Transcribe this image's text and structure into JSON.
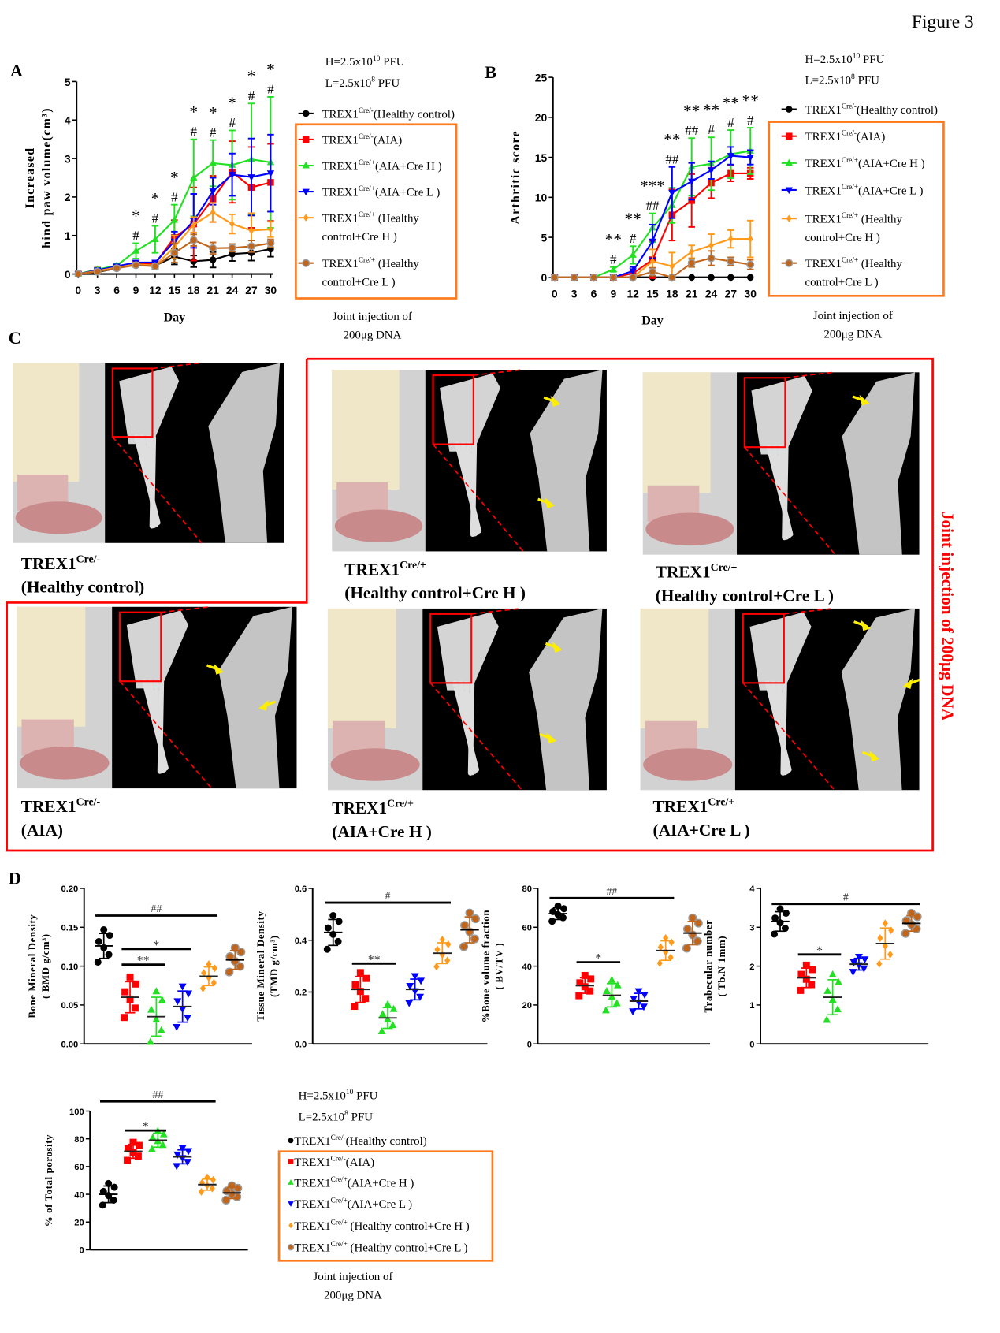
{
  "figure_title": "Figure 3",
  "panel_labels": {
    "A": "A",
    "B": "B",
    "C": "C",
    "D": "D"
  },
  "dose": {
    "H": {
      "base": "H=2.5x10",
      "exp": "10",
      "unit": " PFU"
    },
    "L": {
      "base": "L=2.5x10",
      "exp": "8",
      "unit": " PFU"
    }
  },
  "joint_injection_note": [
    "Joint injection of",
    "200μg  DNA"
  ],
  "joint_injection_vertical": "Joint injection of 200μg  DNA",
  "colors": {
    "accent_box": "#ff7a1a",
    "panel_border": "#ff0000",
    "arrow": "#ffee00"
  },
  "groups": [
    {
      "gene": "TREX1",
      "sup": "Cre/-",
      "legend_lines": [
        "(Healthy control)"
      ],
      "legend_text": "(Healthy control)",
      "color": "#000000",
      "marker": "circle"
    },
    {
      "gene": "TREX1",
      "sup": "Cre/-",
      "legend_lines": [
        "(AIA)"
      ],
      "legend_text": "(AIA)",
      "color": "#ff0000",
      "marker": "square"
    },
    {
      "gene": "TREX1",
      "sup": "Cre/+",
      "legend_lines": [
        "(AIA+Cre H )"
      ],
      "legend_text": "(AIA+Cre H )",
      "color": "#22e022",
      "marker": "triangle-up"
    },
    {
      "gene": "TREX1",
      "sup": "Cre/+",
      "legend_lines": [
        "(AIA+Cre L )"
      ],
      "legend_text": "(AIA+Cre L )",
      "color": "#0000ff",
      "marker": "triangle-down"
    },
    {
      "gene": "TREX1",
      "sup": "Cre/+",
      "legend_lines": [
        " (Healthy",
        "control+Cre H )"
      ],
      "legend_text": " (Healthy control+Cre H )",
      "color": "#ff9a1a",
      "marker": "diamond"
    },
    {
      "gene": "TREX1",
      "sup": "Cre/+",
      "legend_lines": [
        " (Healthy",
        "control+Cre L )"
      ],
      "legend_text": " (Healthy control+Cre L )",
      "color": "#c0651a",
      "marker": "circle-ring"
    }
  ],
  "panel_c": {
    "images": [
      {
        "gene": "TREX1",
        "sup": "Cre/-",
        "condition": "(Healthy control)"
      },
      {
        "gene": "TREX1",
        "sup": "Cre/+",
        "condition": "(Healthy control+Cre H )"
      },
      {
        "gene": "TREX1",
        "sup": "Cre/+",
        "condition": "(Healthy control+Cre L )"
      },
      {
        "gene": "TREX1",
        "sup": "Cre/-",
        "condition": "(AIA)"
      },
      {
        "gene": "TREX1",
        "sup": "Cre/+",
        "condition": "(AIA+Cre H )"
      },
      {
        "gene": "TREX1",
        "sup": "Cre/+",
        "condition": "(AIA+Cre L )"
      }
    ]
  },
  "chart_data": [
    {
      "id": "A",
      "type": "line",
      "ylabel": [
        "Increased",
        "hind paw volume(cm³)"
      ],
      "xlabel": "Day",
      "x": [
        0,
        3,
        6,
        9,
        12,
        15,
        18,
        21,
        24,
        27,
        30
      ],
      "ylim": [
        0,
        5
      ],
      "yticks": [
        0,
        1,
        2,
        3,
        4,
        5
      ],
      "series": [
        {
          "group": 0,
          "values": [
            0,
            0.05,
            0.15,
            0.25,
            0.22,
            0.45,
            0.33,
            0.37,
            0.52,
            0.55,
            0.65
          ],
          "error": [
            0.03,
            0.03,
            0.04,
            0.05,
            0.08,
            0.2,
            0.15,
            0.2,
            0.18,
            0.2,
            0.2
          ]
        },
        {
          "group": 1,
          "values": [
            0,
            0.1,
            0.18,
            0.28,
            0.27,
            0.95,
            1.3,
            1.95,
            2.65,
            2.25,
            2.38
          ],
          "error": [
            0.03,
            0.04,
            0.04,
            0.05,
            0.05,
            0.45,
            0.95,
            0.6,
            0.8,
            1.05,
            1.0
          ]
        },
        {
          "group": 2,
          "values": [
            0,
            0.12,
            0.22,
            0.6,
            0.9,
            1.4,
            2.5,
            2.88,
            2.83,
            2.98,
            2.9
          ],
          "error": [
            0.03,
            0.04,
            0.05,
            0.2,
            0.35,
            0.4,
            1.0,
            0.6,
            0.9,
            1.45,
            1.7
          ]
        },
        {
          "group": 3,
          "values": [
            0,
            0.1,
            0.2,
            0.3,
            0.3,
            0.85,
            1.38,
            2.15,
            2.58,
            2.52,
            2.62
          ],
          "error": [
            0.03,
            0.04,
            0.04,
            0.05,
            0.05,
            0.25,
            0.7,
            0.35,
            0.55,
            1.0,
            1.0
          ]
        },
        {
          "group": 4,
          "values": [
            0,
            0.08,
            0.17,
            0.25,
            0.22,
            0.7,
            1.28,
            1.6,
            1.3,
            1.13,
            1.16
          ],
          "error": [
            0.03,
            0.03,
            0.04,
            0.05,
            0.05,
            0.3,
            0.2,
            0.25,
            0.25,
            0.45,
            0.2
          ]
        },
        {
          "group": 5,
          "values": [
            0,
            0.06,
            0.15,
            0.23,
            0.2,
            0.55,
            0.88,
            0.67,
            0.68,
            0.72,
            0.8
          ],
          "error": [
            0.03,
            0.03,
            0.04,
            0.05,
            0.05,
            0.25,
            0.15,
            0.15,
            0.1,
            0.15,
            0.1
          ]
        }
      ],
      "annotations": [
        {
          "x": 9,
          "lines": [
            "*",
            "#"
          ]
        },
        {
          "x": 12,
          "lines": [
            "*",
            "#"
          ]
        },
        {
          "x": 15,
          "lines": [
            "*",
            "#"
          ]
        },
        {
          "x": 18,
          "lines": [
            "*",
            "#"
          ]
        },
        {
          "x": 21,
          "lines": [
            "*",
            "#"
          ]
        },
        {
          "x": 24,
          "lines": [
            "*",
            "#"
          ]
        },
        {
          "x": 27,
          "lines": [
            "*",
            "#"
          ]
        },
        {
          "x": 30,
          "lines": [
            "*",
            "#"
          ]
        }
      ]
    },
    {
      "id": "B",
      "type": "line",
      "ylabel": [
        "Arthritic score"
      ],
      "xlabel": "Day",
      "x": [
        0,
        3,
        6,
        9,
        12,
        15,
        18,
        21,
        24,
        27,
        30
      ],
      "ylim": [
        0,
        25
      ],
      "yticks": [
        0,
        5,
        10,
        15,
        20,
        25
      ],
      "series": [
        {
          "group": 0,
          "values": [
            0,
            0,
            0,
            0,
            0,
            0,
            0,
            0,
            0,
            0,
            0
          ],
          "error": [
            0,
            0,
            0,
            0,
            0,
            0,
            0,
            0,
            0,
            0,
            0
          ]
        },
        {
          "group": 1,
          "values": [
            0,
            0,
            0,
            0,
            0.5,
            2.2,
            7.8,
            9.6,
            11.8,
            13,
            13
          ],
          "error": [
            0,
            0,
            0,
            0,
            0.4,
            2.3,
            3.2,
            3.3,
            1.9,
            1,
            0.7
          ]
        },
        {
          "group": 2,
          "values": [
            0,
            0,
            0,
            1,
            2.8,
            6.2,
            9,
            13.8,
            14.2,
            15.4,
            15.8
          ],
          "error": [
            0,
            0,
            0,
            0.3,
            1.1,
            1.8,
            2.2,
            3.6,
            3.3,
            3,
            2.9
          ]
        },
        {
          "group": 3,
          "values": [
            0,
            0,
            0,
            0,
            0.8,
            4.5,
            10.6,
            12,
            13.4,
            15.2,
            15
          ],
          "error": [
            0,
            0,
            0,
            0,
            0.5,
            2.1,
            3.2,
            2.3,
            1.1,
            1.1,
            0.9
          ]
        },
        {
          "group": 4,
          "values": [
            0,
            0,
            0,
            0,
            0,
            2,
            1.4,
            3.2,
            4,
            4.8,
            4.8
          ],
          "error": [
            0,
            0,
            0,
            0,
            0,
            1.5,
            1.7,
            0.8,
            1.4,
            1.1,
            2.3
          ]
        },
        {
          "group": 5,
          "values": [
            0,
            0,
            0,
            0,
            0,
            0.7,
            0,
            1.8,
            2.4,
            2,
            1.6
          ],
          "error": [
            0,
            0,
            0,
            0,
            0,
            0.5,
            0,
            0.5,
            0.9,
            0.5,
            0.6
          ]
        }
      ],
      "annotations": [
        {
          "x": 9,
          "lines": [
            "**",
            "#"
          ]
        },
        {
          "x": 12,
          "lines": [
            "**",
            "#"
          ]
        },
        {
          "x": 15,
          "lines": [
            "***",
            "##"
          ]
        },
        {
          "x": 18,
          "lines": [
            "**",
            "##"
          ]
        },
        {
          "x": 21,
          "lines": [
            "**",
            "##"
          ]
        },
        {
          "x": 24,
          "lines": [
            "**",
            "#"
          ]
        },
        {
          "x": 27,
          "lines": [
            "**",
            "#"
          ]
        },
        {
          "x": 30,
          "lines": [
            "**",
            "#"
          ]
        }
      ]
    },
    {
      "id": "D1",
      "type": "scatter",
      "ylabel": [
        "Bone Mineral Density",
        "( BMD g/cm³)"
      ],
      "ylim": [
        0,
        0.2
      ],
      "yticks": [
        0,
        0.05,
        0.1,
        0.15,
        0.2
      ],
      "ytick_labels": [
        "0.00",
        "0.05",
        "0.10",
        "0.15",
        "0.20"
      ],
      "groups": [
        {
          "mean": 0.126,
          "sd": 0.016
        },
        {
          "mean": 0.06,
          "sd": 0.02
        },
        {
          "mean": 0.035,
          "sd": 0.025
        },
        {
          "mean": 0.048,
          "sd": 0.02
        },
        {
          "mean": 0.087,
          "sd": 0.012
        },
        {
          "mean": 0.108,
          "sd": 0.012
        }
      ],
      "significance": [
        {
          "from": 0,
          "to": 4,
          "label": "##",
          "y": 0.165
        },
        {
          "from": 1,
          "to": 3,
          "label": "*",
          "y": 0.122
        },
        {
          "from": 1,
          "to": 2,
          "label": "**",
          "y": 0.102
        }
      ]
    },
    {
      "id": "D2",
      "type": "scatter",
      "ylabel": [
        "Tissue Mineral Density",
        "(TMD g/cm³)"
      ],
      "ylim": [
        0,
        0.6
      ],
      "yticks": [
        0,
        0.2,
        0.4,
        0.6
      ],
      "ytick_labels": [
        "0.0",
        "0.2",
        "0.4",
        "0.6"
      ],
      "groups": [
        {
          "mean": 0.43,
          "sd": 0.05
        },
        {
          "mean": 0.21,
          "sd": 0.05
        },
        {
          "mean": 0.1,
          "sd": 0.04
        },
        {
          "mean": 0.21,
          "sd": 0.04
        },
        {
          "mean": 0.35,
          "sd": 0.04
        },
        {
          "mean": 0.44,
          "sd": 0.05
        }
      ],
      "significance": [
        {
          "from": 0,
          "to": 4,
          "label": "#",
          "y": 0.545
        },
        {
          "from": 1,
          "to": 2,
          "label": "**",
          "y": 0.31
        }
      ]
    },
    {
      "id": "D3",
      "type": "scatter",
      "ylabel": [
        "%Bone volume fraction",
        "( BV/TV )"
      ],
      "ylim": [
        0,
        80
      ],
      "yticks": [
        0,
        20,
        40,
        60,
        80
      ],
      "ytick_labels": [
        "0",
        "20",
        "40",
        "60",
        "80"
      ],
      "groups": [
        {
          "mean": 67,
          "sd": 3
        },
        {
          "mean": 30,
          "sd": 4
        },
        {
          "mean": 25,
          "sd": 6
        },
        {
          "mean": 22,
          "sd": 4
        },
        {
          "mean": 48,
          "sd": 5
        },
        {
          "mean": 57,
          "sd": 6
        }
      ],
      "significance": [
        {
          "from": 0,
          "to": 4,
          "label": "##",
          "y": 75
        },
        {
          "from": 1,
          "to": 2,
          "label": "*",
          "y": 42
        }
      ]
    },
    {
      "id": "D4",
      "type": "scatter",
      "ylabel": [
        "Trabecular number",
        "( Tb.N 1mm)"
      ],
      "ylim": [
        0,
        4
      ],
      "yticks": [
        0,
        1,
        2,
        3,
        4
      ],
      "ytick_labels": [
        "0",
        "1",
        "2",
        "3",
        "4"
      ],
      "groups": [
        {
          "mean": 3.15,
          "sd": 0.25
        },
        {
          "mean": 1.7,
          "sd": 0.25
        },
        {
          "mean": 1.2,
          "sd": 0.45
        },
        {
          "mean": 2.05,
          "sd": 0.15
        },
        {
          "mean": 2.58,
          "sd": 0.4
        },
        {
          "mean": 3.1,
          "sd": 0.2
        }
      ],
      "significance": [
        {
          "from": 0,
          "to": 5,
          "label": "#",
          "y": 3.6
        },
        {
          "from": 1,
          "to": 2,
          "label": "*",
          "y": 2.3
        }
      ]
    },
    {
      "id": "D5",
      "type": "scatter",
      "ylabel": [
        "% of Total porosity"
      ],
      "ylim": [
        0,
        100
      ],
      "yticks": [
        0,
        20,
        40,
        60,
        80,
        100
      ],
      "ytick_labels": [
        "0",
        "20",
        "40",
        "60",
        "80",
        "100"
      ],
      "groups": [
        {
          "mean": 40,
          "sd": 6
        },
        {
          "mean": 71,
          "sd": 5
        },
        {
          "mean": 79,
          "sd": 5
        },
        {
          "mean": 67,
          "sd": 5
        },
        {
          "mean": 47,
          "sd": 4
        },
        {
          "mean": 41,
          "sd": 4
        }
      ],
      "significance": [
        {
          "from": 0,
          "to": 4,
          "label": "##",
          "y": 107
        },
        {
          "from": 1,
          "to": 2,
          "label": "*",
          "y": 86
        }
      ]
    }
  ]
}
